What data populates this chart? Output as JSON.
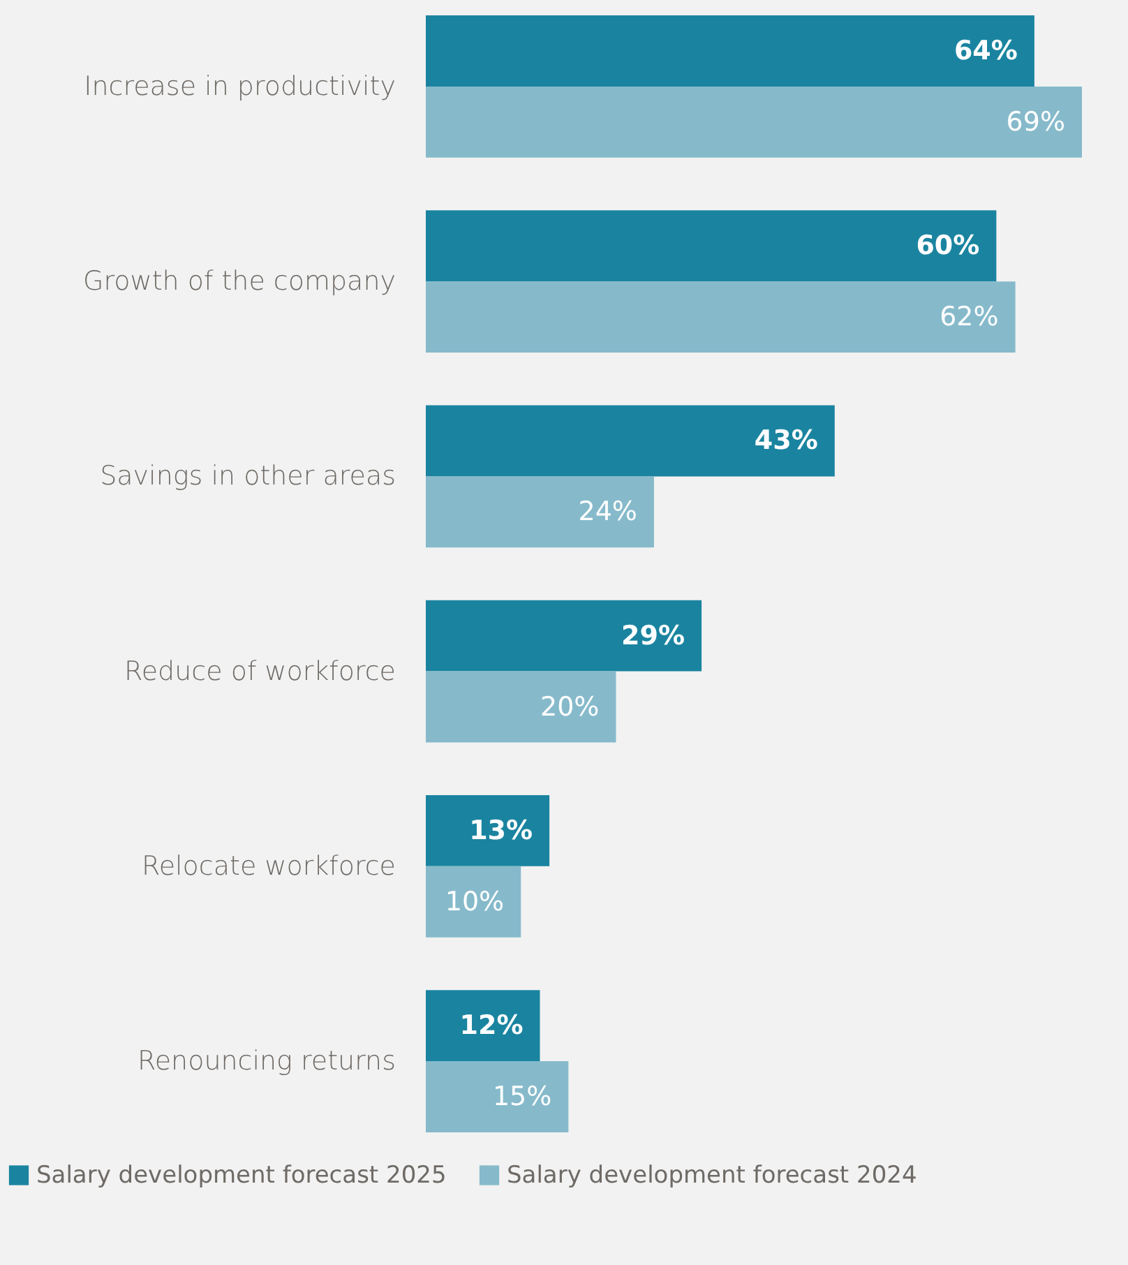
{
  "chart_data": {
    "type": "bar",
    "orientation": "horizontal",
    "legend": "bottom",
    "categories": [
      "Increase in productivity",
      "Growth of the company",
      "Savings in other areas",
      "Reduce of workforce",
      "Relocate workforce",
      "Renouncing returns"
    ],
    "series": [
      {
        "name": "Salary development forecast 2025",
        "color": "#1a84a0",
        "values": [
          64,
          60,
          43,
          29,
          13,
          12
        ],
        "value_labels": [
          "64%",
          "60%",
          "43%",
          "29%",
          "13%",
          "12%"
        ]
      },
      {
        "name": "Salary development forecast 2024",
        "color": "#86bacb",
        "values": [
          69,
          62,
          24,
          20,
          10,
          15
        ],
        "value_labels": [
          "69%",
          "62%",
          "24%",
          "20%",
          "10%",
          "15%"
        ]
      }
    ]
  }
}
